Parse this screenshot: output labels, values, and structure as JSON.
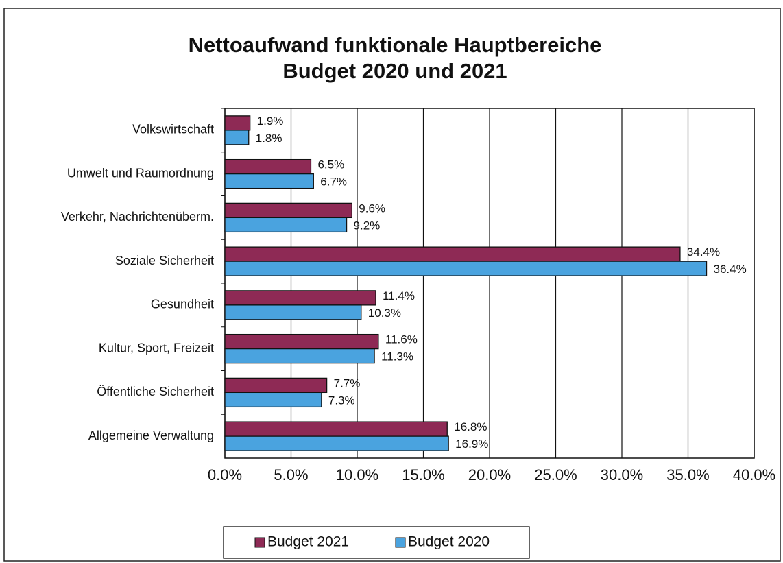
{
  "chart_data": {
    "type": "hbar",
    "title_lines": [
      "Nettoaufwand funktionale Hauptbereiche",
      "Budget 2020 und 2021"
    ],
    "categories": [
      "Volkswirtschaft",
      "Umwelt und Raumordnung",
      "Verkehr, Nachrichtenüberm.",
      "Soziale Sicherheit",
      "Gesundheit",
      "Kultur, Sport, Freizeit",
      "Öffentliche Sicherheit",
      "Allgemeine Verwaltung"
    ],
    "series": [
      {
        "name": "Budget 2021",
        "color": "#8e2a55",
        "values": [
          1.9,
          6.5,
          9.6,
          34.4,
          11.4,
          11.6,
          7.7,
          16.8
        ],
        "value_labels": [
          "1.9%",
          "6.5%",
          "9.6%",
          "34.4%",
          "11.4%",
          "11.6%",
          "7.7%",
          "16.8%"
        ]
      },
      {
        "name": "Budget 2020",
        "color": "#4aa3df",
        "values": [
          1.8,
          6.7,
          9.2,
          36.4,
          10.3,
          11.3,
          7.3,
          16.9
        ],
        "value_labels": [
          "1.8%",
          "6.7%",
          "9.2%",
          "36.4%",
          "10.3%",
          "11.3%",
          "7.3%",
          "16.9%"
        ]
      }
    ],
    "xlim": [
      0,
      40
    ],
    "xticks": [
      {
        "value": 0,
        "label": "0.0%"
      },
      {
        "value": 5,
        "label": "5.0%"
      },
      {
        "value": 10,
        "label": "10.0%"
      },
      {
        "value": 15,
        "label": "15.0%"
      },
      {
        "value": 20,
        "label": "20.0%"
      },
      {
        "value": 25,
        "label": "25.0%"
      },
      {
        "value": 30,
        "label": "30.0%"
      },
      {
        "value": 35,
        "label": "35.0%"
      },
      {
        "value": 40,
        "label": "40.0%"
      }
    ],
    "grid": true,
    "legend": "bottom"
  }
}
